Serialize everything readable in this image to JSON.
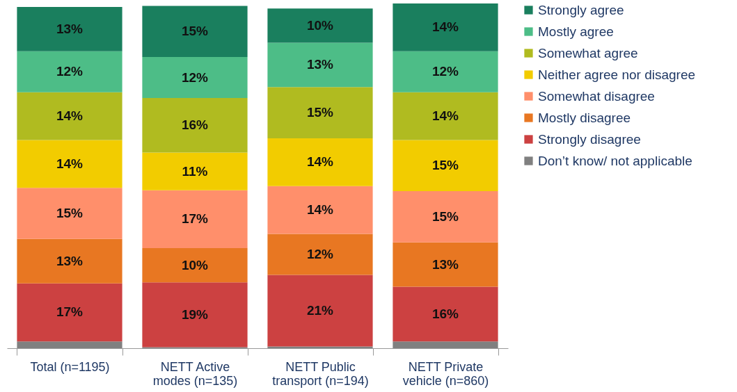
{
  "chart_data": {
    "type": "bar",
    "stacked": true,
    "categories": [
      "Total (n=1195)",
      "NETT Active\nmodes (n=135)",
      "NETT Public\ntransport (n=194)",
      "NETT Private\nvehicle (n=860)"
    ],
    "ylim": [
      0,
      101
    ],
    "tick_labels": "x",
    "legend": "right",
    "grid": false,
    "series": [
      {
        "name": "Don’t know/ not applicable",
        "color": "#808080",
        "values": [
          2,
          0.3,
          0.5,
          2
        ],
        "value_labels": [
          null,
          null,
          null,
          null
        ]
      },
      {
        "name": "Strongly disagree",
        "color": "#cc4141",
        "values": [
          17,
          19,
          21,
          16
        ],
        "value_labels": [
          "17%",
          "19%",
          "21%",
          "16%"
        ]
      },
      {
        "name": "Mostly disagree",
        "color": "#e87722",
        "values": [
          13,
          10,
          12,
          13
        ],
        "value_labels": [
          "13%",
          "10%",
          "12%",
          "13%"
        ]
      },
      {
        "name": "Somewhat disagree",
        "color": "#ff8f6b",
        "values": [
          15,
          17,
          14,
          15
        ],
        "value_labels": [
          "15%",
          "17%",
          "14%",
          "15%"
        ]
      },
      {
        "name": "Neither agree nor disagree",
        "color": "#f2cc00",
        "values": [
          14,
          11,
          14,
          15
        ],
        "value_labels": [
          "14%",
          "11%",
          "14%",
          "15%"
        ]
      },
      {
        "name": "Somewhat agree",
        "color": "#b0bb20",
        "values": [
          14,
          16,
          15,
          14
        ],
        "value_labels": [
          "14%",
          "16%",
          "15%",
          "14%"
        ]
      },
      {
        "name": "Mostly agree",
        "color": "#4dbd87",
        "values": [
          12,
          12,
          13,
          12
        ],
        "value_labels": [
          "12%",
          "12%",
          "13%",
          "12%"
        ]
      },
      {
        "name": "Strongly agree",
        "color": "#1a7f5e",
        "values": [
          13,
          15,
          10,
          14
        ],
        "value_labels": [
          "13%",
          "15%",
          "10%",
          "14%"
        ]
      }
    ]
  }
}
